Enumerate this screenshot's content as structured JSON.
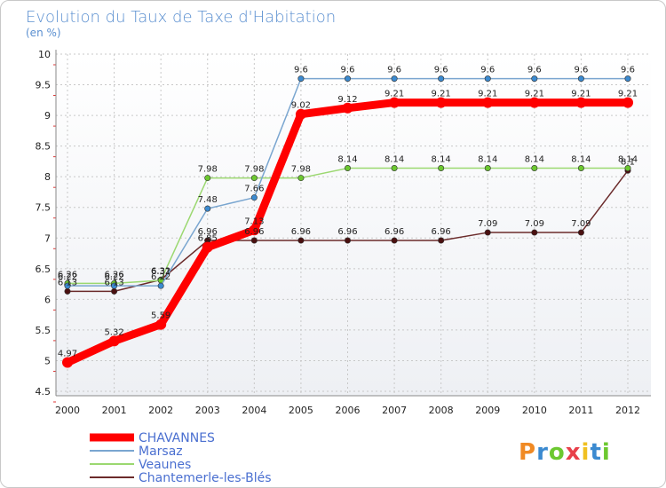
{
  "chart_data": {
    "type": "line",
    "title": "Evolution du Taux de Taxe d'Habitation",
    "subtitle": "(en %)",
    "xlabel": "",
    "ylabel": "",
    "ylim": [
      4.5,
      10
    ],
    "yticks": [
      "4.5",
      "5",
      "5.5",
      "6",
      "6.5",
      "7",
      "7.5",
      "8",
      "8.5",
      "9",
      "9.5",
      "10"
    ],
    "categories": [
      "2000",
      "2001",
      "2002",
      "2003",
      "2004",
      "2005",
      "2006",
      "2007",
      "2008",
      "2009",
      "2010",
      "2011",
      "2012"
    ],
    "series": [
      {
        "name": "Chantemerle-les-Blés",
        "color": "#6b2b2b",
        "marker": "#4a1010",
        "values": [
          6.13,
          6.13,
          6.32,
          6.96,
          6.96,
          6.96,
          6.96,
          6.96,
          6.96,
          7.09,
          7.09,
          7.09,
          8.1
        ],
        "labels": [
          "6.13",
          "6.13",
          "6.32",
          "6.96",
          "6.96",
          "6.96",
          "6.96",
          "6.96",
          "6.96",
          "7.09",
          "7.09",
          "7.09",
          "8.1"
        ]
      },
      {
        "name": "Veaunes",
        "color": "#9bd870",
        "marker": "#6cc830",
        "values": [
          6.26,
          6.26,
          6.31,
          7.98,
          7.98,
          7.98,
          8.14,
          8.14,
          8.14,
          8.14,
          8.14,
          8.14,
          8.14
        ],
        "labels": [
          "6.26",
          "6.26",
          "6.31",
          "7.98",
          "7.98",
          "7.98",
          "8.14",
          "8.14",
          "8.14",
          "8.14",
          "8.14",
          "8.14",
          "8.14"
        ]
      },
      {
        "name": "Marsaz",
        "color": "#7aa6d0",
        "marker": "#3b8ad0",
        "values": [
          6.22,
          6.22,
          6.22,
          7.48,
          7.66,
          9.6,
          9.6,
          9.6,
          9.6,
          9.6,
          9.6,
          9.6,
          9.6
        ],
        "labels": [
          "6.22",
          "6.22",
          "6.22",
          "7.48",
          "7.66",
          "9.6",
          "9.6",
          "9.6",
          "9.6",
          "9.6",
          "9.6",
          "9.6",
          "9.6"
        ]
      },
      {
        "name": "CHAVANNES",
        "color": "#ff0000",
        "marker": "#ff0000",
        "values": [
          4.97,
          5.32,
          5.59,
          6.85,
          7.13,
          9.02,
          9.12,
          9.21,
          9.21,
          9.21,
          9.21,
          9.21,
          9.21
        ],
        "labels": [
          "4.97",
          "5.32",
          "5.59",
          "6.85",
          "7.13",
          "9.02",
          "9.12",
          "9.21",
          "9.21",
          "9.21",
          "9.21",
          "9.21",
          "9.21"
        ]
      }
    ],
    "legend": [
      "CHAVANNES",
      "Marsaz",
      "Veaunes",
      "Chantemerle-les-Blés"
    ],
    "legend_position": "bottom-left"
  },
  "logo": {
    "text": "Proxiti"
  }
}
